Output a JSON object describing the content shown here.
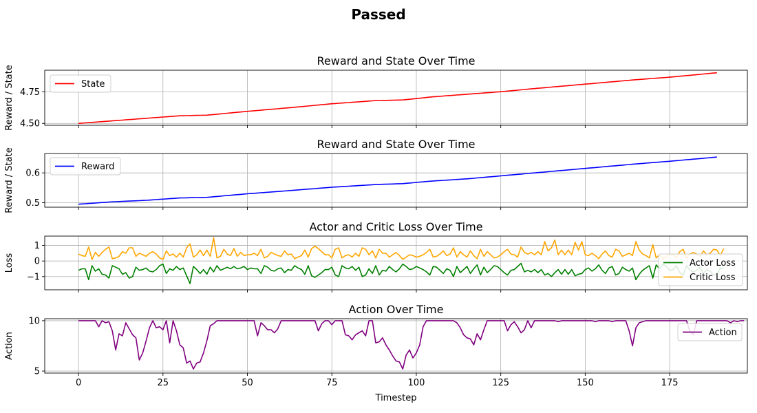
{
  "figure": {
    "suptitle": "Passed"
  },
  "chart_data": [
    {
      "type": "line",
      "title": "Reward and State Over Time",
      "xlabel": "",
      "ylabel": "Reward / State",
      "xlim": [
        -10,
        198
      ],
      "ylim": [
        4.485,
        4.92
      ],
      "xticks": [
        0,
        25,
        50,
        75,
        100,
        125,
        150,
        175
      ],
      "yticks": [
        4.5,
        4.75
      ],
      "ytick_labels": [
        "4.50",
        "4.75"
      ],
      "grid": true,
      "legend": "upper left",
      "series": [
        {
          "name": "State",
          "color": "#ff0000",
          "anchors": [
            [
              0,
              4.5
            ],
            [
              10,
              4.52
            ],
            [
              20,
              4.54
            ],
            [
              30,
              4.56
            ],
            [
              38,
              4.565
            ],
            [
              50,
              4.595
            ],
            [
              63,
              4.625
            ],
            [
              75,
              4.655
            ],
            [
              88,
              4.68
            ],
            [
              96,
              4.685
            ],
            [
              105,
              4.71
            ],
            [
              115,
              4.73
            ],
            [
              125,
              4.75
            ],
            [
              135,
              4.775
            ],
            [
              150,
              4.81
            ],
            [
              165,
              4.845
            ],
            [
              175,
              4.865
            ],
            [
              189,
              4.9
            ]
          ]
        }
      ]
    },
    {
      "type": "line",
      "title": "Reward and State Over Time",
      "xlabel": "",
      "ylabel": "Reward / State",
      "xlim": [
        -10,
        198
      ],
      "ylim": [
        0.485,
        0.665
      ],
      "xticks": [
        0,
        25,
        50,
        75,
        100,
        125,
        150,
        175
      ],
      "yticks": [
        0.5,
        0.6
      ],
      "ytick_labels": [
        "0.5",
        "0.6"
      ],
      "grid": true,
      "legend": "upper left",
      "series": [
        {
          "name": "Reward",
          "color": "#0000ff",
          "anchors": [
            [
              0,
              0.495
            ],
            [
              10,
              0.503
            ],
            [
              20,
              0.508
            ],
            [
              30,
              0.516
            ],
            [
              38,
              0.518
            ],
            [
              50,
              0.53
            ],
            [
              63,
              0.541
            ],
            [
              75,
              0.552
            ],
            [
              88,
              0.561
            ],
            [
              96,
              0.564
            ],
            [
              105,
              0.573
            ],
            [
              115,
              0.58
            ],
            [
              125,
              0.59
            ],
            [
              135,
              0.6
            ],
            [
              150,
              0.615
            ],
            [
              165,
              0.63
            ],
            [
              175,
              0.639
            ],
            [
              189,
              0.653
            ]
          ]
        }
      ]
    },
    {
      "type": "line",
      "title": "Actor and Critic Loss Over Time",
      "xlabel": "",
      "ylabel": "Loss",
      "xlim": [
        -10,
        198
      ],
      "ylim": [
        -1.85,
        1.6
      ],
      "xticks": [
        0,
        25,
        50,
        75,
        100,
        125,
        150,
        175
      ],
      "yticks": [
        -1,
        0,
        1
      ],
      "ytick_labels": [
        "−1",
        "0",
        "1"
      ],
      "grid": true,
      "legend": "lower right",
      "series": [
        {
          "name": "Actor Loss",
          "color": "#008000",
          "values": [
            -0.6,
            -0.5,
            -0.5,
            -1.2,
            -0.3,
            -0.65,
            -0.5,
            -0.85,
            -0.9,
            -1.1,
            -0.3,
            -0.4,
            -0.5,
            -0.85,
            -0.75,
            -1.1,
            -1.0,
            -0.4,
            -0.6,
            -0.55,
            -0.45,
            -0.65,
            -0.7,
            -0.55,
            -0.3,
            -0.2,
            -0.8,
            -0.5,
            -0.6,
            -0.35,
            -0.55,
            -0.45,
            -0.95,
            -1.45,
            -0.35,
            -0.55,
            -0.8,
            -0.55,
            -0.85,
            -0.4,
            -0.7,
            -0.3,
            -0.6,
            -0.5,
            -0.4,
            -0.5,
            -0.35,
            -0.5,
            -0.45,
            -0.35,
            -0.55,
            -0.45,
            -0.5,
            -0.5,
            -0.8,
            -0.3,
            -0.4,
            -0.6,
            -0.65,
            -0.5,
            -0.45,
            -0.75,
            -0.55,
            -0.6,
            -0.3,
            -0.45,
            -0.55,
            -0.85,
            -0.3,
            -0.95,
            -1.05,
            -0.9,
            -0.75,
            -0.55,
            -0.55,
            -0.4,
            -0.9,
            -1.0,
            -0.3,
            -0.45,
            -0.5,
            -0.35,
            -0.6,
            -0.4,
            -1.0,
            -0.9,
            -0.5,
            -0.8,
            -0.3,
            -0.9,
            -0.6,
            -0.65,
            -0.35,
            -0.55,
            -0.7,
            -0.5,
            -0.2,
            -0.35,
            -0.55,
            -0.5,
            -0.35,
            -0.45,
            -0.55,
            -0.7,
            -0.9,
            -0.35,
            -0.4,
            -0.6,
            -0.8,
            -0.5,
            -0.6,
            -1.0,
            -0.35,
            -0.75,
            -0.55,
            -0.35,
            -0.8,
            -0.5,
            -0.25,
            -0.9,
            -0.4,
            -0.75,
            -0.55,
            -0.3,
            -0.35,
            -0.55,
            -0.75,
            -0.9,
            -0.6,
            -0.55,
            -0.35,
            -0.15,
            -0.7,
            -0.6,
            -0.7,
            -0.55,
            -0.75,
            -0.55,
            -0.9,
            -0.8,
            -1.0,
            -0.75,
            -0.55,
            -0.85,
            -0.55,
            -0.85,
            -0.55,
            -0.95,
            -0.85,
            -0.8,
            -0.55,
            -0.45,
            -0.65,
            -0.5,
            -0.25,
            -0.6,
            -0.8,
            -0.45,
            -0.35,
            -0.9,
            -0.8,
            -0.4,
            -0.55,
            -0.65,
            -0.45,
            -1.2,
            -0.85,
            -0.6,
            -0.45,
            -0.3,
            -1.1,
            -0.25,
            -0.5,
            -0.2,
            -0.35,
            -0.6,
            -0.55,
            -0.3,
            -0.75,
            -0.9,
            -0.3,
            -0.6,
            -0.7,
            -0.6,
            -0.4,
            -0.8,
            -0.55,
            -0.65,
            -0.9,
            -0.85,
            -0.45,
            -0.5
          ]
        },
        {
          "name": "Critic Loss",
          "color": "#ffa500",
          "values": [
            0.45,
            0.35,
            0.3,
            0.9,
            0.1,
            0.55,
            0.3,
            0.55,
            0.75,
            0.9,
            0.15,
            0.2,
            0.3,
            0.6,
            0.5,
            0.85,
            0.85,
            0.3,
            0.5,
            0.4,
            0.3,
            0.5,
            0.6,
            0.45,
            0.2,
            0.1,
            0.65,
            0.35,
            0.45,
            0.25,
            0.5,
            0.25,
            0.85,
            1.1,
            0.25,
            0.4,
            0.7,
            0.35,
            0.7,
            0.3,
            1.5,
            0.2,
            0.3,
            0.75,
            0.45,
            0.35,
            0.8,
            0.3,
            0.55,
            0.35,
            0.4,
            0.4,
            0.5,
            0.35,
            0.75,
            0.2,
            0.3,
            0.55,
            0.45,
            0.35,
            0.3,
            0.65,
            0.4,
            0.45,
            0.15,
            0.25,
            0.35,
            0.7,
            0.25,
            0.8,
            0.95,
            0.8,
            0.6,
            0.4,
            0.4,
            0.2,
            0.75,
            0.85,
            0.2,
            0.35,
            0.4,
            0.25,
            0.5,
            0.3,
            0.85,
            0.75,
            0.4,
            0.65,
            0.2,
            0.75,
            0.5,
            0.5,
            0.25,
            0.4,
            0.55,
            0.35,
            0.1,
            0.25,
            0.4,
            0.35,
            0.25,
            0.3,
            0.4,
            0.55,
            0.75,
            0.25,
            0.3,
            0.45,
            0.65,
            0.35,
            0.45,
            0.85,
            0.25,
            0.6,
            0.4,
            0.25,
            0.65,
            0.35,
            0.15,
            0.75,
            0.3,
            0.6,
            0.4,
            0.2,
            0.25,
            0.4,
            0.6,
            0.75,
            0.45,
            0.4,
            0.25,
            0.9,
            0.55,
            0.45,
            0.55,
            0.4,
            0.6,
            0.4,
            1.25,
            0.65,
            0.85,
            1.35,
            0.4,
            0.7,
            0.4,
            0.7,
            0.4,
            1.2,
            0.7,
            1.25,
            0.4,
            0.35,
            0.5,
            0.35,
            0.15,
            0.45,
            0.65,
            0.35,
            0.25,
            0.75,
            0.65,
            0.3,
            0.4,
            0.5,
            0.35,
            1.25,
            0.7,
            0.45,
            0.35,
            0.2,
            1.05,
            0.2,
            0.4,
            0.15,
            0.25,
            0.45,
            0.4,
            0.2,
            0.6,
            0.75,
            0.2,
            0.45,
            0.55,
            0.45,
            0.3,
            0.65,
            0.4,
            0.5,
            0.75,
            0.7,
            0.35,
            0.8
          ]
        }
      ]
    },
    {
      "type": "line",
      "title": "Action Over Time",
      "xlabel": "Timestep",
      "ylabel": "Action",
      "xlim": [
        -10,
        198
      ],
      "ylim": [
        4.8,
        10.2
      ],
      "xticks": [
        0,
        25,
        50,
        75,
        100,
        125,
        150,
        175
      ],
      "yticks": [
        5,
        10
      ],
      "ytick_labels": [
        "5",
        "10"
      ],
      "grid": true,
      "legend": "upper right",
      "series": [
        {
          "name": "Action",
          "color": "#800080",
          "values": [
            10,
            10,
            10,
            10,
            10,
            10,
            9.4,
            10,
            9.8,
            9.9,
            9,
            7.1,
            8.7,
            8.5,
            9.8,
            9.2,
            8.6,
            8.3,
            6.1,
            6.8,
            8.0,
            9.3,
            10,
            9.3,
            9.4,
            9.1,
            10,
            7.8,
            10,
            9.0,
            7.6,
            7.3,
            5.8,
            6.0,
            5.2,
            5.8,
            5.9,
            6.8,
            8.0,
            9.5,
            9.7,
            10,
            10,
            10,
            10,
            10,
            10,
            10,
            10,
            10,
            10,
            10,
            10,
            8.5,
            9.8,
            9.5,
            9.1,
            9.1,
            8.8,
            9.2,
            10,
            10,
            10,
            10,
            10,
            10,
            10,
            10,
            10,
            10,
            10,
            9.0,
            9.7,
            10,
            10,
            9.6,
            10,
            10,
            10,
            8.6,
            8.5,
            8.1,
            8.6,
            8.8,
            9.0,
            8.5,
            10,
            10,
            7.8,
            7.9,
            8.3,
            7.6,
            7.1,
            6.5,
            6.0,
            5.9,
            5.2,
            6.6,
            7.1,
            6.3,
            6.8,
            7.6,
            9.4,
            10,
            10,
            10,
            10,
            10,
            10,
            10,
            10,
            10,
            9.8,
            9.3,
            8.6,
            8.3,
            8.2,
            7.6,
            8.7,
            8.1,
            9.1,
            10,
            10,
            10,
            10,
            10,
            10,
            9.0,
            9.6,
            9.9,
            9.4,
            8.8,
            9.1,
            10,
            9.3,
            10,
            10,
            10,
            10,
            10,
            10,
            10,
            9.9,
            10,
            10,
            10,
            10,
            10,
            10,
            10,
            10,
            10,
            10,
            9.9,
            10,
            10,
            10,
            10,
            9.9,
            10,
            10,
            10,
            10,
            9.0,
            7.5,
            9.3,
            9.8,
            9.9,
            10,
            10,
            10,
            10,
            10,
            10,
            10,
            10,
            10,
            10,
            10,
            10,
            10,
            8.9,
            8.6,
            10,
            10,
            10,
            10,
            10,
            10,
            10,
            10,
            10,
            10,
            9.8,
            10,
            9.9,
            10,
            10
          ]
        }
      ]
    }
  ]
}
